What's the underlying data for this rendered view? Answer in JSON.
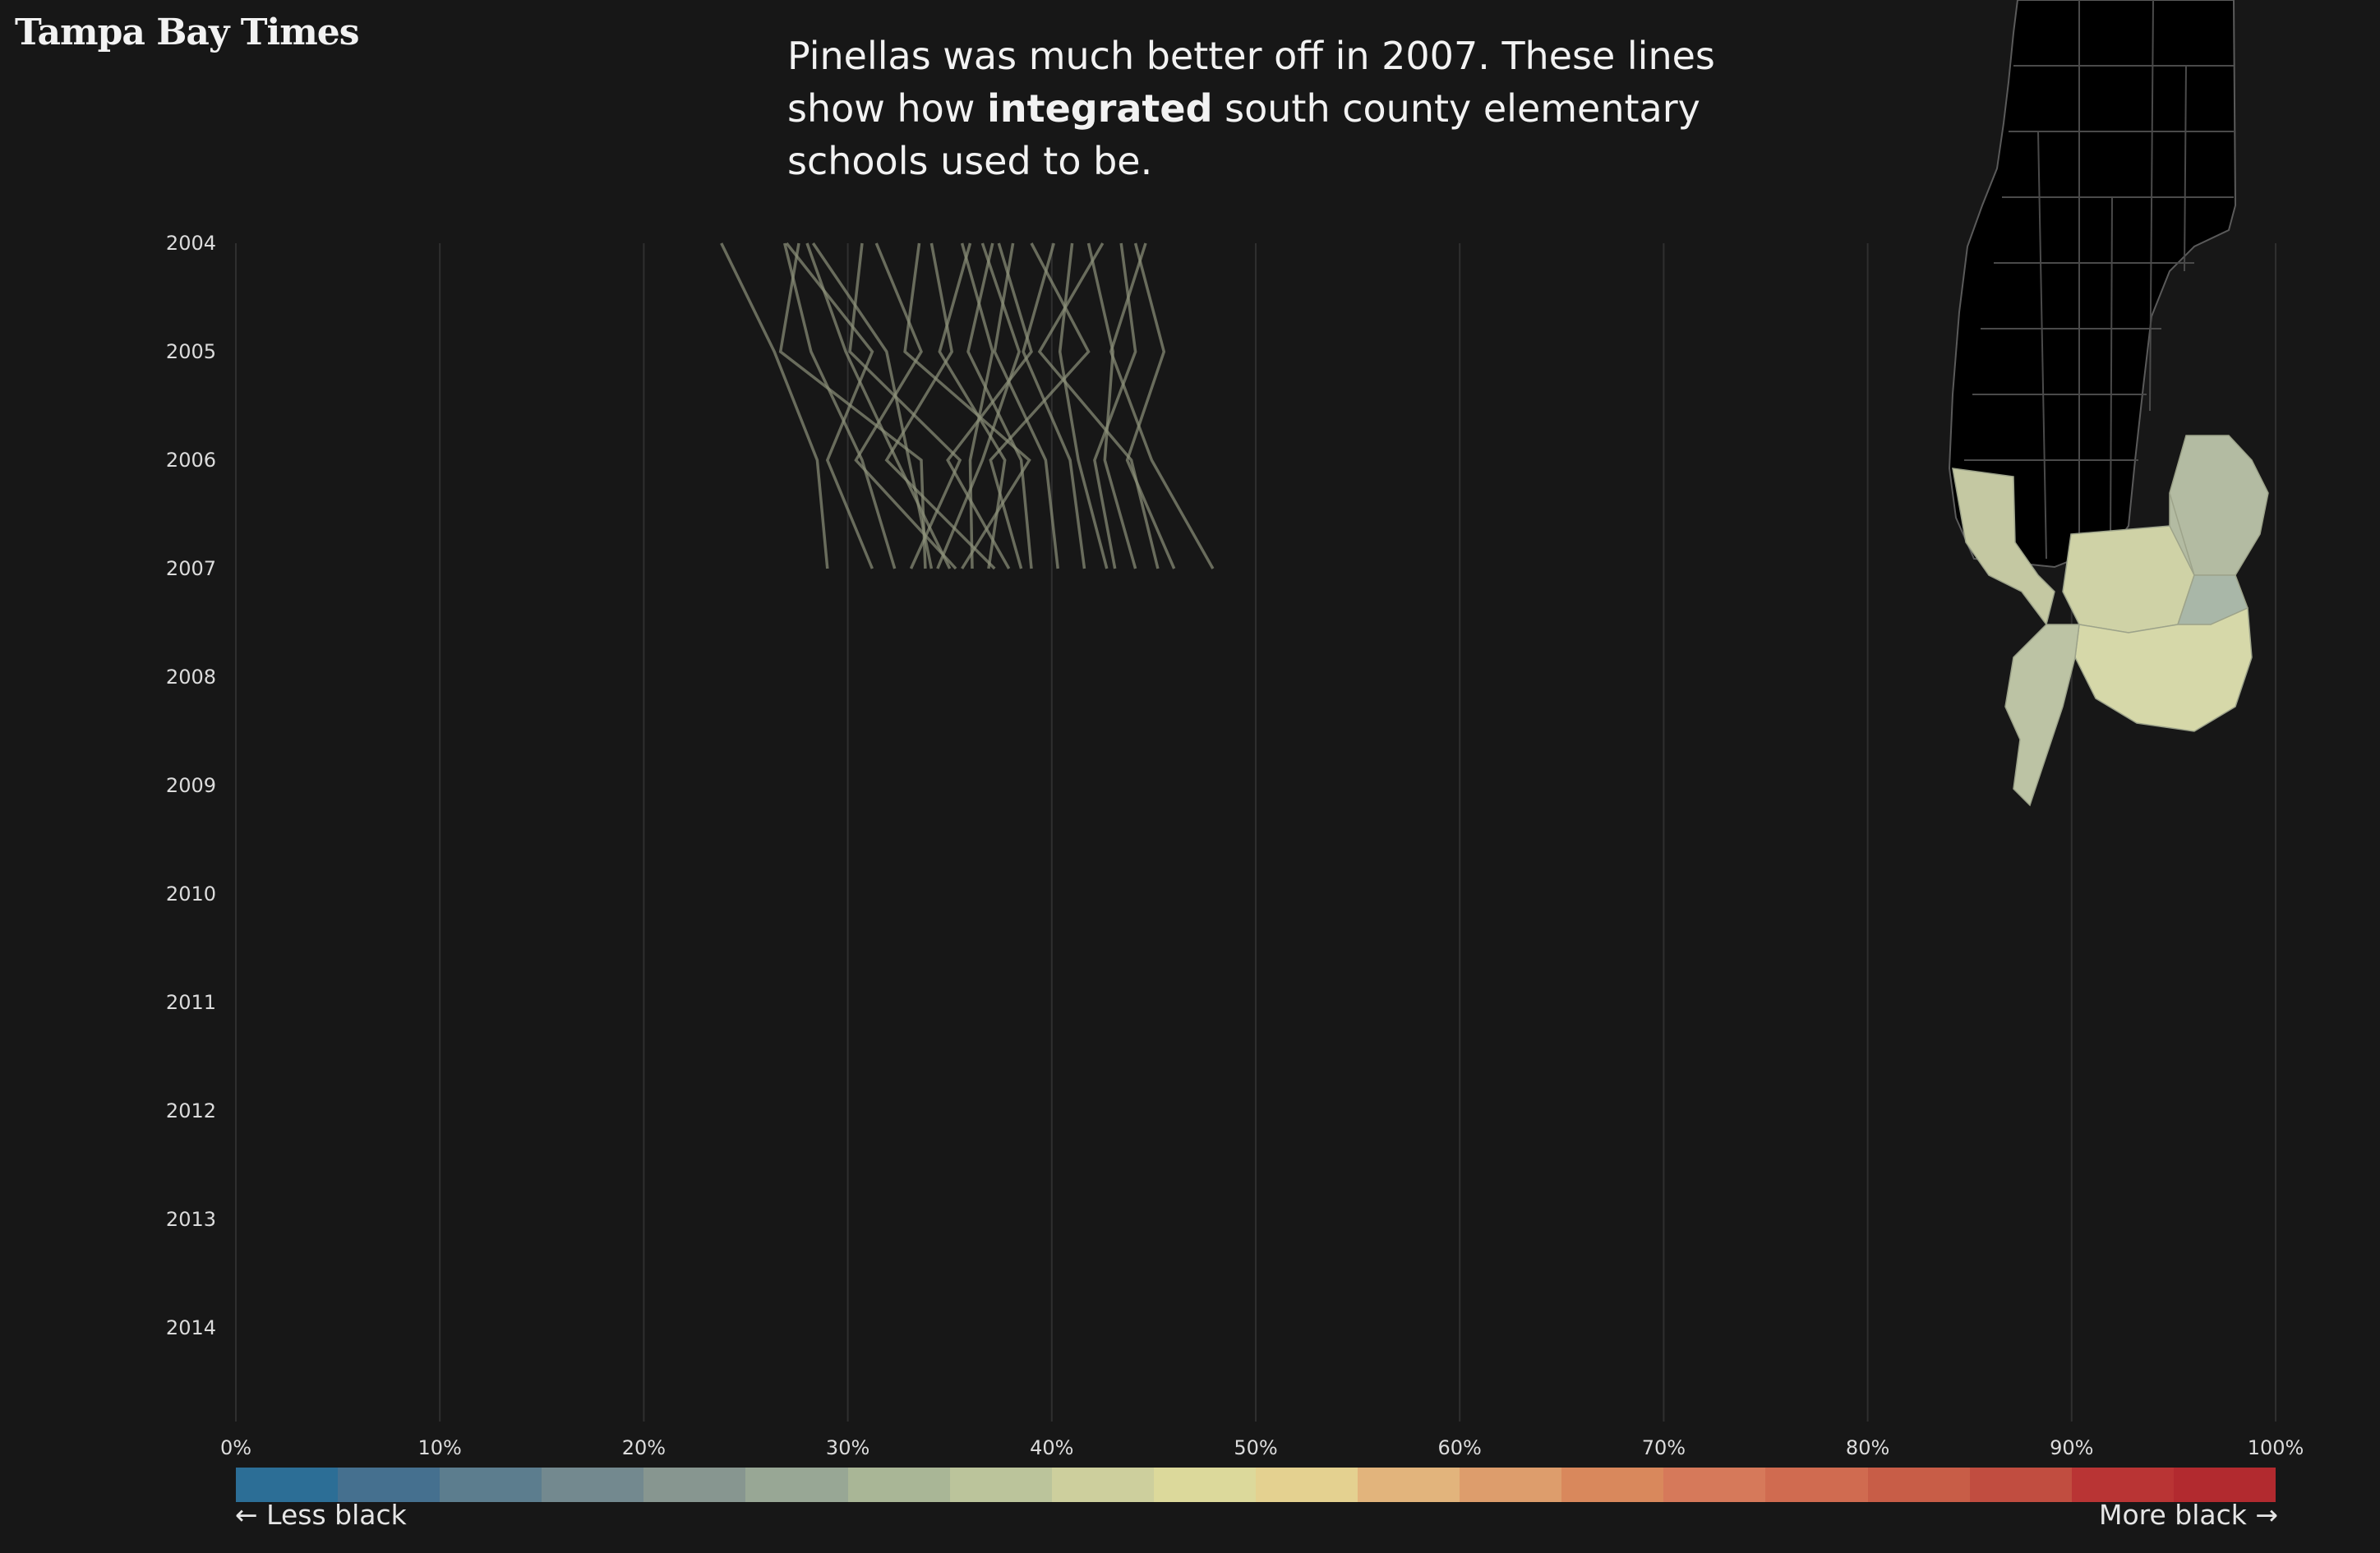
{
  "brand": "Tampa Bay Times",
  "headline": {
    "part1": "Pinellas was much better off in 2007. These lines show how ",
    "emphasis": "integrated",
    "part2": " south county elementary schools used to be."
  },
  "legend": {
    "left_label": "← Less black",
    "right_label": "More black →",
    "colors": [
      "#2c6e96",
      "#45708f",
      "#5c7d8e",
      "#73898f",
      "#879690",
      "#98a795",
      "#a9b696",
      "#bbc49b",
      "#cdcf9d",
      "#dcd99b",
      "#e4d190",
      "#e2b47c",
      "#dd9d6c",
      "#d9885c",
      "#d6795a",
      "#d06b50",
      "#c85d47",
      "#c14d40",
      "#b93434",
      "#b22a2f"
    ]
  },
  "map": {
    "north_fill": "#000000",
    "south_fills": [
      "#c4c8a2",
      "#b3bba2",
      "#cfd2a6",
      "#a9b7a8",
      "#d6d8a9",
      "#bcc3a4"
    ]
  },
  "chart_data": {
    "type": "line",
    "years": [
      "2004",
      "2005",
      "2006",
      "2007",
      "2008",
      "2009",
      "2010",
      "2011",
      "2012",
      "2013",
      "2014"
    ],
    "x_ticks": [
      "0%",
      "10%",
      "20%",
      "30%",
      "40%",
      "50%",
      "60%",
      "70%",
      "80%",
      "90%",
      "100%"
    ],
    "xlim": [
      0,
      100
    ],
    "x_quantity": "percent black students",
    "grid": true,
    "line_color": "#8d927a",
    "series": [
      {
        "values": [
          23.8,
          26.4,
          28.5,
          29.0
        ]
      },
      {
        "values": [
          26.9,
          28.2,
          30.7,
          32.3
        ]
      },
      {
        "values": [
          27.0,
          31.2,
          29.0,
          31.2
        ]
      },
      {
        "values": [
          27.6,
          26.7,
          33.6,
          33.8
        ]
      },
      {
        "values": [
          28.0,
          29.9,
          32.4,
          35.0
        ]
      },
      {
        "values": [
          30.7,
          30.1,
          35.5,
          33.1
        ]
      },
      {
        "values": [
          31.4,
          33.6,
          30.4,
          35.3
        ]
      },
      {
        "values": [
          34.1,
          35.1,
          31.9,
          37.2
        ]
      },
      {
        "values": [
          35.6,
          37.1,
          36.0,
          36.1
        ]
      },
      {
        "values": [
          36.0,
          34.5,
          37.7,
          36.9
        ]
      },
      {
        "values": [
          36.6,
          38.4,
          36.6,
          34.4
        ]
      },
      {
        "values": [
          37.1,
          35.9,
          38.5,
          39.0
        ]
      },
      {
        "values": [
          37.4,
          39.0,
          34.9,
          37.9
        ]
      },
      {
        "values": [
          38.1,
          37.2,
          39.7,
          40.3
        ]
      },
      {
        "values": [
          39.0,
          41.8,
          37.0,
          38.5
        ]
      },
      {
        "values": [
          40.1,
          38.6,
          40.9,
          41.6
        ]
      },
      {
        "values": [
          41.0,
          40.4,
          41.3,
          42.7
        ]
      },
      {
        "values": [
          41.8,
          43.0,
          42.6,
          44.1
        ]
      },
      {
        "values": [
          42.5,
          39.4,
          43.9,
          45.2
        ]
      },
      {
        "values": [
          43.4,
          44.1,
          42.1,
          43.1
        ]
      },
      {
        "values": [
          44.1,
          45.5,
          43.7,
          46.0
        ]
      },
      {
        "values": [
          44.6,
          42.9,
          44.9,
          47.9
        ]
      },
      {
        "values": [
          28.3,
          31.9,
          33.0,
          34.1
        ]
      },
      {
        "values": [
          33.5,
          32.8,
          38.9,
          35.6
        ]
      }
    ]
  }
}
